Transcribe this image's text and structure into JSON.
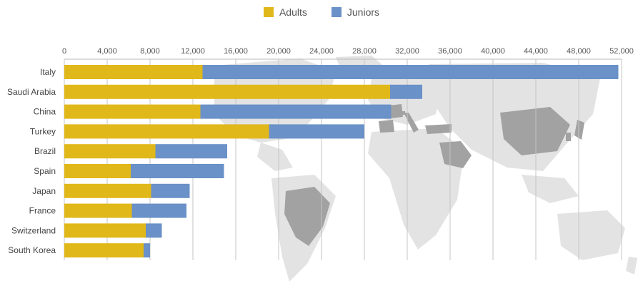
{
  "chart_data": {
    "type": "bar",
    "orientation": "horizontal",
    "stacked": true,
    "categories": [
      "Italy",
      "Saudi Arabia",
      "China",
      "Turkey",
      "Brazil",
      "Spain",
      "Japan",
      "France",
      "Switzerland",
      "South Korea"
    ],
    "series": [
      {
        "name": "Adults",
        "color": "#e1b81a",
        "values": [
          12900,
          30400,
          12700,
          19100,
          8500,
          6200,
          8100,
          6300,
          7600,
          7400
        ]
      },
      {
        "name": "Juniors",
        "color": "#6a91c8",
        "values": [
          38800,
          3000,
          17800,
          8900,
          6700,
          8700,
          3600,
          5100,
          1500,
          600
        ]
      }
    ],
    "xlim": [
      0,
      52000
    ],
    "x_ticks": [
      "0",
      "4,000",
      "8,000",
      "12,000",
      "16,000",
      "20,000",
      "24,000",
      "28,000",
      "32,000",
      "36,000",
      "40,000",
      "44,000",
      "48,000",
      "52,000"
    ],
    "grid": true,
    "legend_position": "top-center",
    "background": "world map with Italy, Saudi Arabia, China, Turkey, Brazil, Spain, Japan, France, Switzerland, South Korea highlighted"
  },
  "legend": {
    "adults": "Adults",
    "juniors": "Juniors"
  }
}
